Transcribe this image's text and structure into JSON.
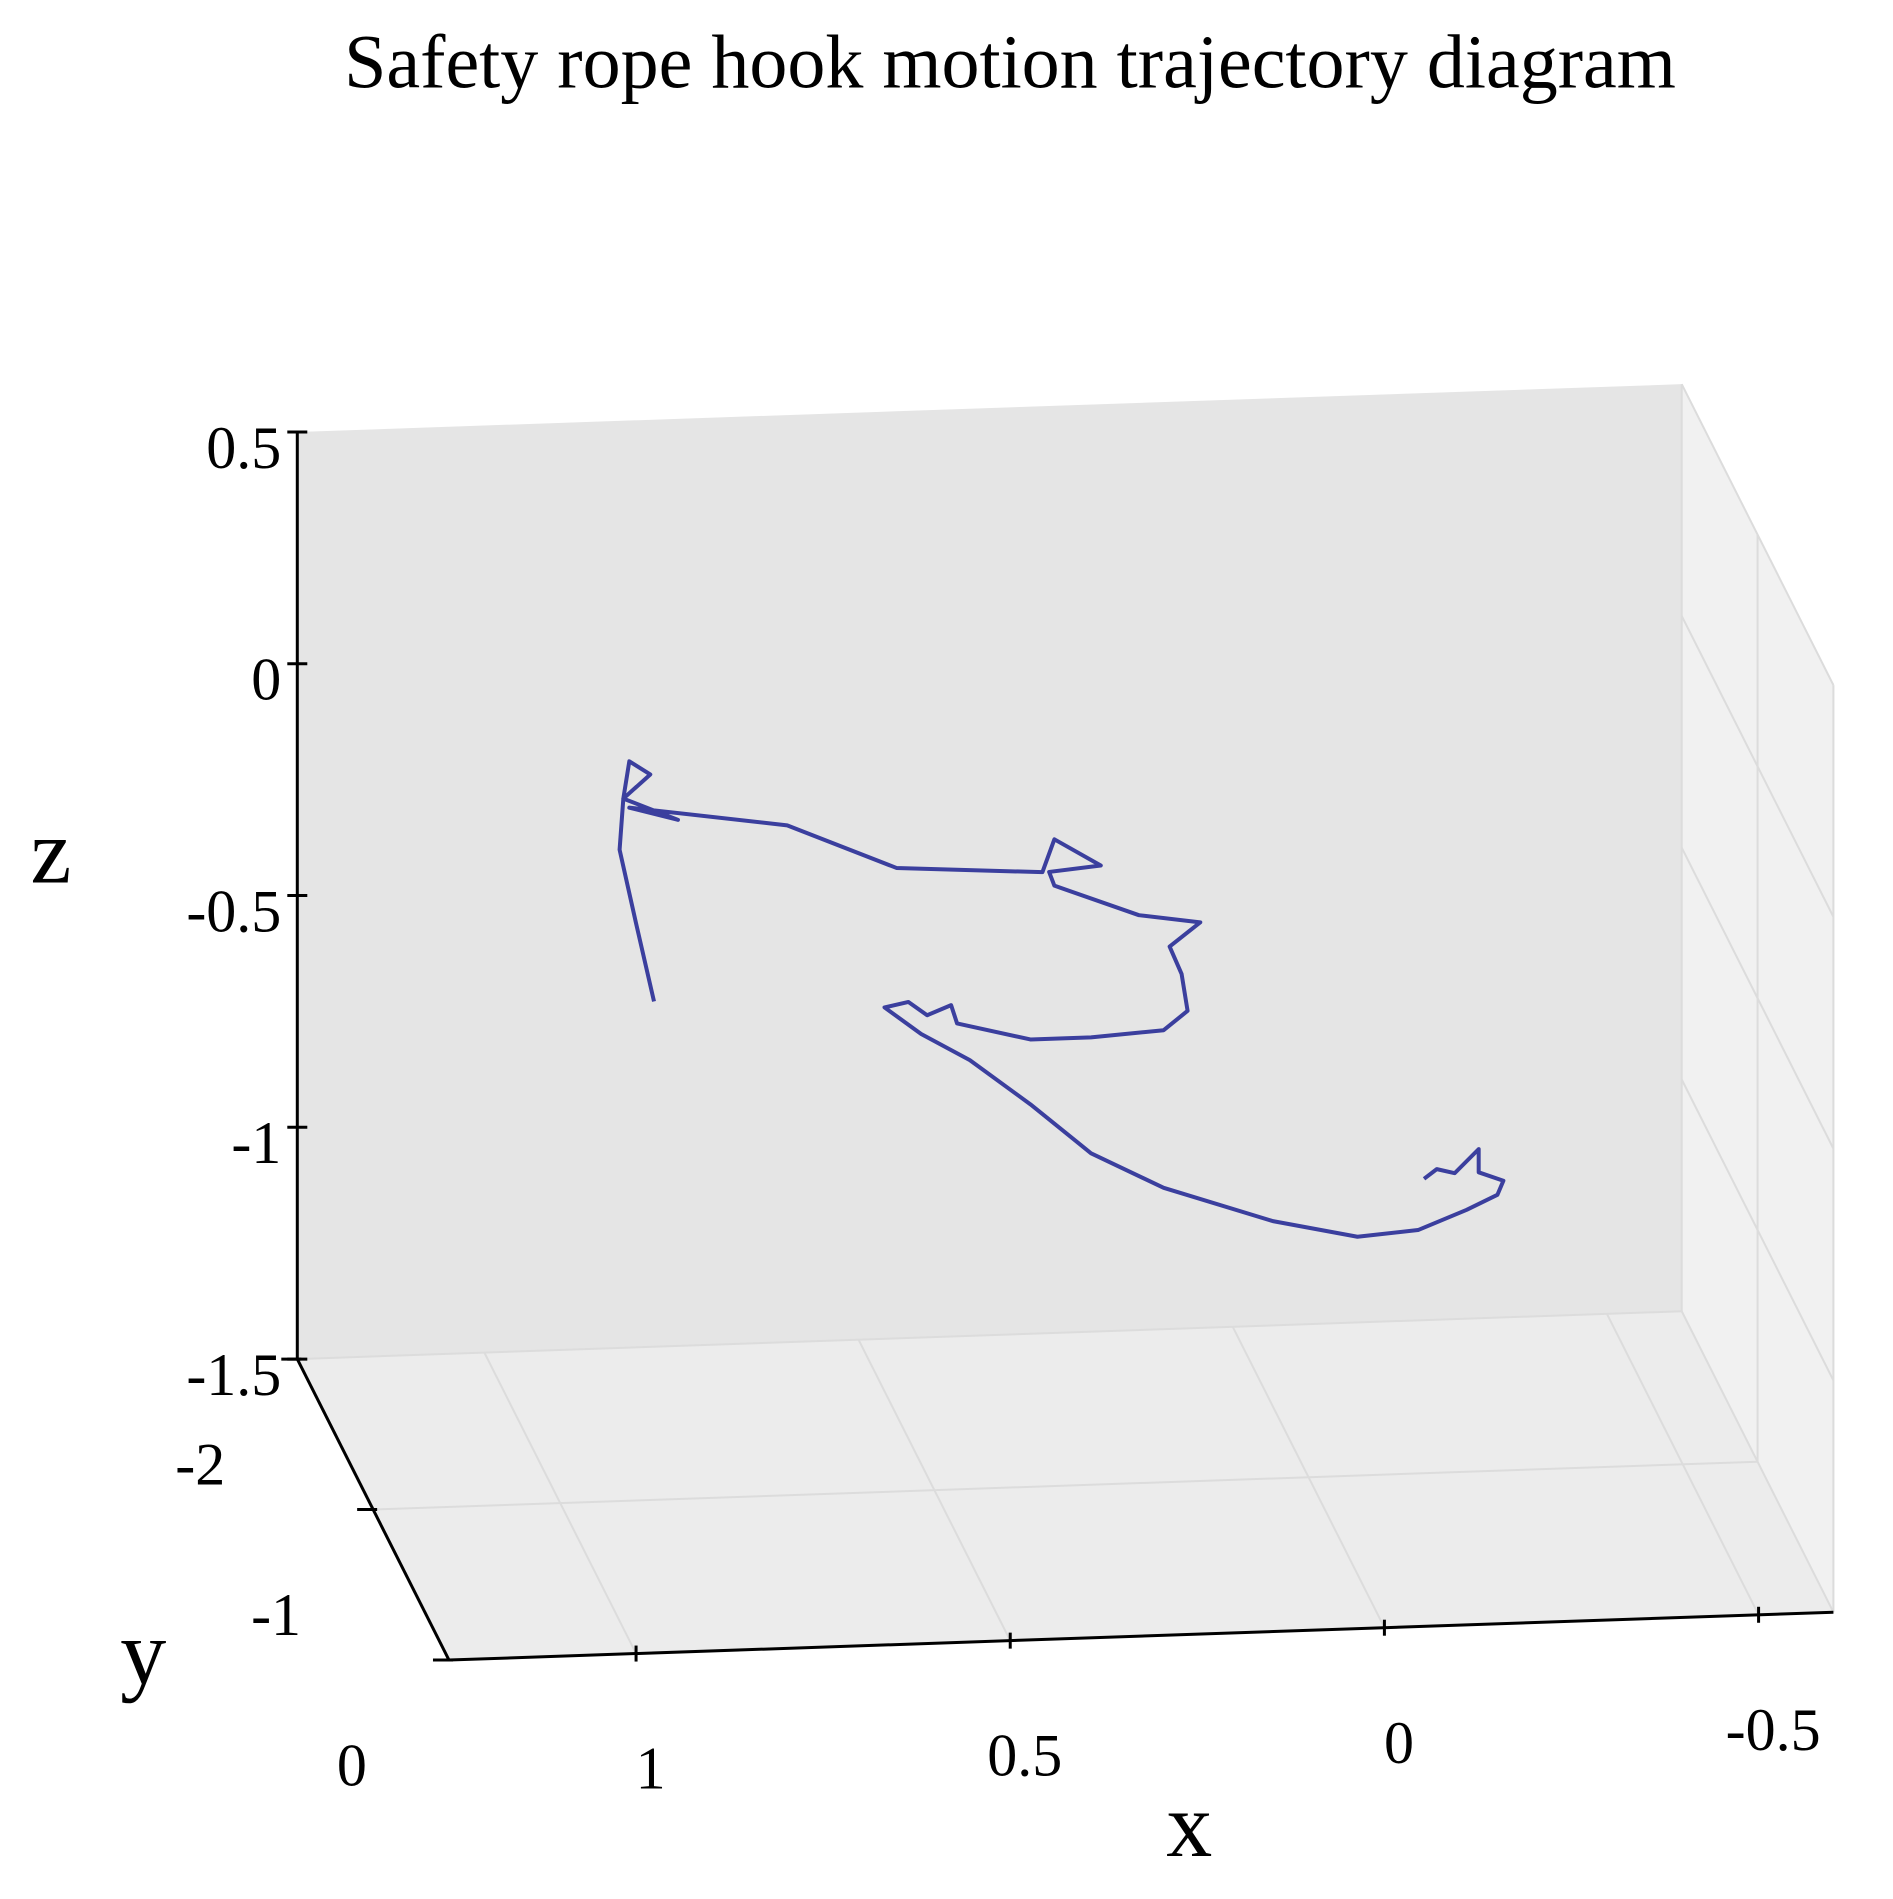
{
  "chart_data": {
    "type": "line3d",
    "title": "Safety rope hook motion trajectory diagram",
    "xlabel": "x",
    "ylabel": "y",
    "zlabel": "z",
    "xlim": [
      -0.6,
      1.25
    ],
    "ylim": [
      -2,
      0
    ],
    "zlim": [
      -1.5,
      0.5
    ],
    "xticks": [
      1.0,
      0.5,
      0.0,
      -0.5
    ],
    "yticks": [
      -2,
      -1,
      0
    ],
    "zticks": [
      0.5,
      0.0,
      -0.5,
      -1.0,
      -1.5
    ],
    "grid": true,
    "series": [
      {
        "color": "#3b3f9e",
        "x": [
          0.824,
          0.848,
          0.87,
          0.865,
          0.857,
          0.829,
          0.865,
          0.792,
          0.857,
          0.646,
          0.5,
          0.305,
          0.289,
          0.227,
          0.296,
          0.289,
          0.176,
          0.094,
          0.135,
          0.119,
          0.111,
          0.143,
          0.24,
          0.321,
          0.419,
          0.427,
          0.459,
          0.484,
          0.516,
          0.467,
          0.402,
          0.321,
          0.24,
          0.143,
          -0.003,
          -0.116,
          -0.197,
          -0.262,
          -0.303,
          -0.311,
          -0.278,
          -0.278,
          -0.246,
          -0.222,
          -0.205
        ],
        "y": [
          -1.5,
          -1.5,
          -1.5,
          -1.5,
          -1.5,
          -1.5,
          -1.5,
          -1.5,
          -1.5,
          -1.5,
          -1.5,
          -1.5,
          -1.5,
          -1.5,
          -1.5,
          -1.5,
          -1.5,
          -1.5,
          -1.5,
          -1.5,
          -1.5,
          -1.5,
          -1.5,
          -1.5,
          -1.5,
          -1.5,
          -1.5,
          -1.5,
          -1.5,
          -1.5,
          -1.5,
          -1.5,
          -1.5,
          -1.5,
          -1.5,
          -1.5,
          -1.5,
          -1.5,
          -1.5,
          -1.5,
          -1.5,
          -1.5,
          -1.5,
          -1.5,
          -1.5
        ],
        "z": [
          -0.59,
          -0.42,
          -0.26,
          -0.15,
          -0.07,
          -0.1,
          -0.15,
          -0.2,
          -0.17,
          -0.22,
          -0.32,
          -0.34,
          -0.27,
          -0.33,
          -0.34,
          -0.37,
          -0.44,
          -0.46,
          -0.51,
          -0.57,
          -0.65,
          -0.69,
          -0.7,
          -0.7,
          -0.66,
          -0.62,
          -0.64,
          -0.61,
          -0.62,
          -0.68,
          -0.74,
          -0.84,
          -0.95,
          -1.03,
          -1.11,
          -1.15,
          -1.14,
          -1.1,
          -1.07,
          -1.04,
          -1.02,
          -0.97,
          -1.02,
          -1.01,
          -1.03
        ]
      }
    ]
  }
}
